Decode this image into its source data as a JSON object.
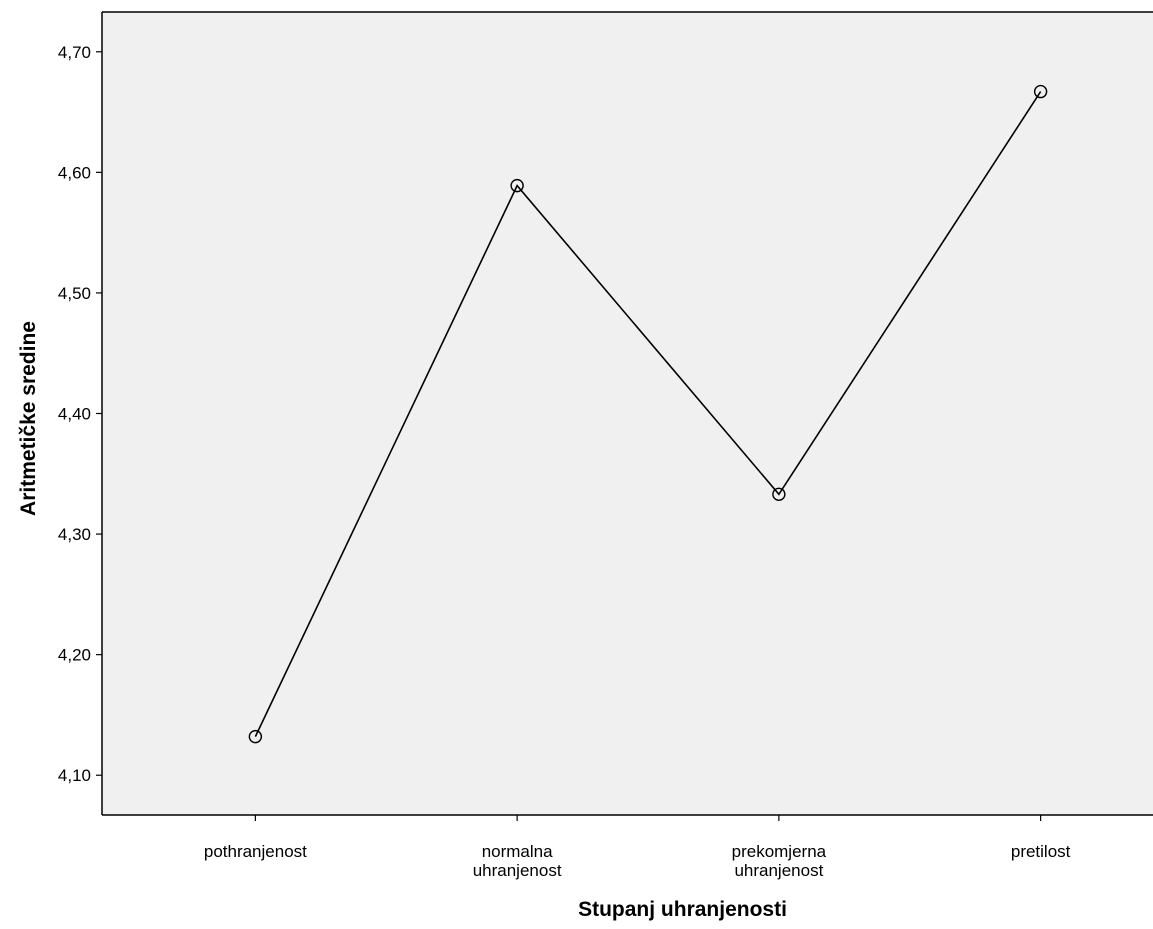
{
  "chart_data": {
    "type": "line",
    "title": "",
    "xlabel": "Stupanj uhranjenosti",
    "ylabel": "Aritmetičke sredine",
    "categories": [
      [
        "pothranjenost"
      ],
      [
        "normalna",
        "uhranjenost"
      ],
      [
        "prekomjerna",
        "uhranjenost"
      ],
      [
        "pretilost"
      ]
    ],
    "series": [
      {
        "values": [
          4.132,
          4.589,
          4.333,
          4.667
        ]
      }
    ],
    "ylim": [
      4.067,
      4.733
    ],
    "yticks": [
      4.1,
      4.2,
      4.3,
      4.4,
      4.5,
      4.6,
      4.7
    ],
    "ytick_labels": [
      "4,10",
      "4,20",
      "4,30",
      "4,40",
      "4,50",
      "4,60",
      "4,70"
    ],
    "grid": false,
    "legend": "none",
    "colors": {
      "plot_background": "#f0f0f0",
      "line": "#000000",
      "axis": "#000000"
    },
    "marker": "open-circle"
  }
}
